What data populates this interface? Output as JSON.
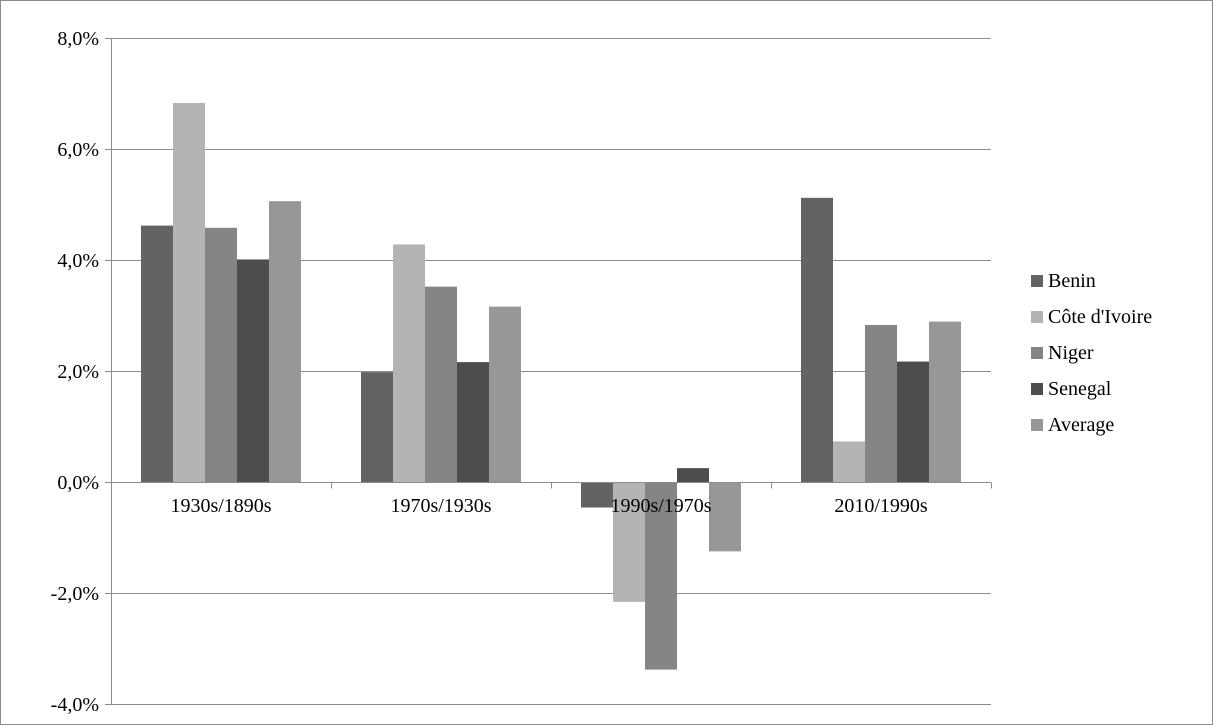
{
  "chart_data": {
    "type": "bar",
    "categories": [
      "1930s/1890s",
      "1970s/1930s",
      "1990s/1970s",
      "2010/1990s"
    ],
    "series": [
      {
        "name": "Benin",
        "color": "#636363",
        "values": [
          4.62,
          1.98,
          -0.46,
          5.12
        ]
      },
      {
        "name": "Côte d'Ivoire",
        "color": "#b4b4b4",
        "values": [
          6.83,
          4.28,
          -2.16,
          0.73
        ]
      },
      {
        "name": "Niger",
        "color": "#858585",
        "values": [
          4.58,
          3.52,
          -3.38,
          2.83
        ]
      },
      {
        "name": "Senegal",
        "color": "#4d4d4d",
        "values": [
          4.01,
          2.16,
          0.25,
          2.17
        ]
      },
      {
        "name": "Average",
        "color": "#979797",
        "values": [
          5.06,
          3.16,
          -1.25,
          2.89
        ]
      }
    ],
    "yticks": [
      "8,0%",
      "6,0%",
      "4,0%",
      "2,0%",
      "0,0%",
      "-2,0%",
      "-4,0%"
    ],
    "ytick_values": [
      8,
      6,
      4,
      2,
      0,
      -2,
      -4
    ],
    "ylim": [
      -4,
      8
    ],
    "grid": true,
    "legend_position": "right",
    "title": "",
    "xlabel": "",
    "ylabel": ""
  }
}
